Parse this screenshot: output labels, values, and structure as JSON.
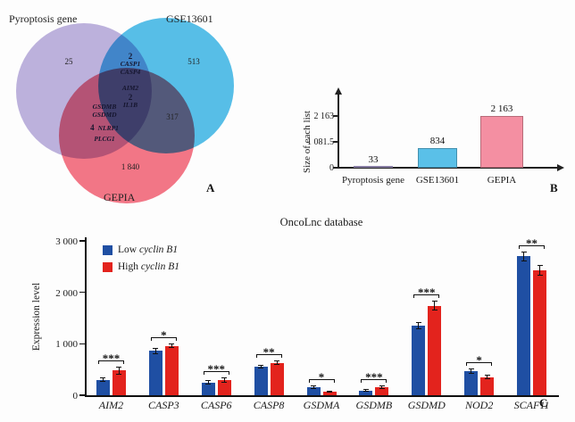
{
  "panels": {
    "a": "A",
    "b": "B",
    "c": "C"
  },
  "chart_data": [
    {
      "type": "venn",
      "sets": [
        {
          "name": "Pyroptosis gene",
          "color": "#b3a6d9",
          "size": 33
        },
        {
          "name": "GSE13601",
          "color": "#3ab5e6",
          "size": 834
        },
        {
          "name": "GEPIA",
          "color": "#f25f72",
          "size": 2163
        }
      ],
      "regions": {
        "pyroptosis_only": "25",
        "gse13601_only": "513",
        "gepia_only": "1 840",
        "gse13601_gepia": "317",
        "pyroptosis_gse13601": {
          "count": "2",
          "genes": [
            "CASP1",
            "CASP4"
          ]
        },
        "pyroptosis_gepia": {
          "count": "4",
          "genes": [
            "GSDMB",
            "GSDMD",
            "NLRP1",
            "PLCG1"
          ]
        },
        "all_three": {
          "count": "2",
          "genes": [
            "AIM2",
            "IL1B"
          ]
        }
      }
    },
    {
      "type": "bar",
      "ylabel": "Size of each list",
      "categories": [
        "Pyroptosis gene",
        "GSE13601",
        "GEPIA"
      ],
      "values": [
        33,
        834,
        2163
      ],
      "value_labels": [
        "33",
        "834",
        "2 163"
      ],
      "bar_colors": [
        "#b3a6d9",
        "#5ac0e8",
        "#f48fa2"
      ],
      "ylim": [
        0,
        2163
      ],
      "yticks": [
        0,
        1081.5,
        2163
      ],
      "ytick_labels": [
        "0",
        "1 081.5",
        "2 163"
      ]
    },
    {
      "type": "grouped_bar",
      "title": "OncoLnc database",
      "ylabel": "Expression level",
      "categories": [
        "AIM2",
        "CASP3",
        "CASP6",
        "CASP8",
        "GSDMA",
        "GSDMB",
        "GSDMD",
        "NOD2",
        "SCAF11"
      ],
      "series": [
        {
          "name": "Low cyclin B1",
          "color": "#1f4fa3",
          "values": [
            300,
            860,
            250,
            560,
            160,
            95,
            1350,
            470,
            2700
          ],
          "errors": [
            40,
            60,
            40,
            35,
            35,
            20,
            70,
            55,
            100
          ]
        },
        {
          "name": "High cyclin B1",
          "color": "#e3231d",
          "values": [
            480,
            960,
            290,
            630,
            75,
            155,
            1740,
            350,
            2430
          ],
          "errors": [
            80,
            40,
            50,
            40,
            20,
            30,
            90,
            45,
            110
          ]
        }
      ],
      "significance": [
        "***",
        "*",
        "***",
        "**",
        "*",
        "***",
        "***",
        "*",
        "**"
      ],
      "legend": [
        {
          "prefix": "Low",
          "italic": "cyclin B1"
        },
        {
          "prefix": "High",
          "italic": "cyclin B1"
        }
      ],
      "ylim": [
        0,
        3000
      ],
      "yticks": [
        0,
        1000,
        2000,
        3000
      ],
      "ytick_labels": [
        "0",
        "1 000",
        "2 000",
        "3 000"
      ],
      "legend_position": "top-left"
    }
  ]
}
